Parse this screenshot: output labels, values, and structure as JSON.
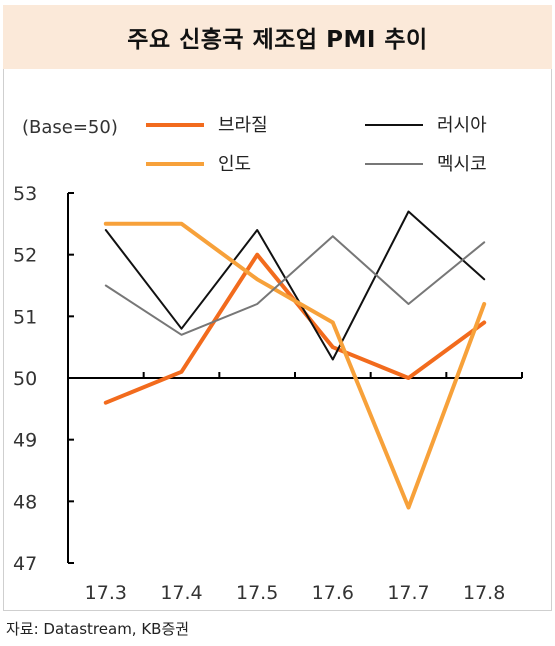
{
  "title": "주요 신흥국 제조업 PMI 추이",
  "source": "자료: Datastream, KB증권",
  "chart_data": {
    "type": "line",
    "title": "주요 신흥국 제조업 PMI 추이",
    "unit_label": "(Base=50)",
    "categories": [
      "17.3",
      "17.4",
      "17.5",
      "17.6",
      "17.7",
      "17.8"
    ],
    "ylim": [
      47,
      53
    ],
    "yticks": [
      47,
      48,
      49,
      50,
      51,
      52,
      53
    ],
    "baseline": 50,
    "grid": false,
    "legend_position": "top",
    "series": [
      {
        "name": "브라질",
        "color": "#f26b1d",
        "width": 4,
        "values": [
          49.6,
          50.1,
          52.0,
          50.5,
          50.0,
          50.9
        ]
      },
      {
        "name": "러시아",
        "color": "#111111",
        "width": 2,
        "values": [
          52.4,
          50.8,
          52.4,
          50.3,
          52.7,
          51.6
        ]
      },
      {
        "name": "인도",
        "color": "#f7a13a",
        "width": 4,
        "values": [
          52.5,
          52.5,
          51.6,
          50.9,
          47.9,
          51.2
        ]
      },
      {
        "name": "멕시코",
        "color": "#777777",
        "width": 2,
        "values": [
          51.5,
          50.7,
          51.2,
          52.3,
          51.2,
          52.2
        ]
      }
    ]
  }
}
